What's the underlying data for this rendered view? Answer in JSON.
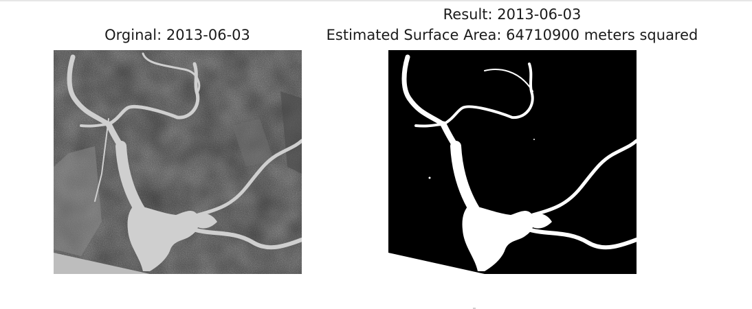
{
  "panels": [
    {
      "title": "Orginal: 2013-06-03",
      "image": "grayscale satellite image of a branching reservoir"
    },
    {
      "title_line_1": "Result: 2013-06-03",
      "title_line_2": "Estimated Surface Area: 64710900 meters squared",
      "image": "binary water mask, white water on black background"
    }
  ],
  "colors": {
    "background": "#ffffff",
    "satellite_land": "#5b5b5b",
    "satellite_water": "#cfcfcf",
    "mask_background": "#000000",
    "mask_water": "#ffffff"
  }
}
